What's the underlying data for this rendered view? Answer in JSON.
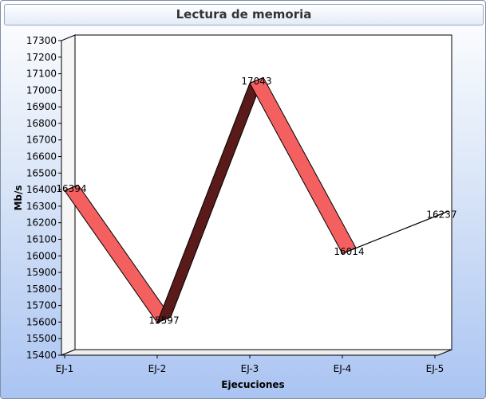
{
  "chart_data": {
    "type": "line",
    "title": "Lectura de memoria",
    "xlabel": "Ejecuciones",
    "ylabel": "Mb/s",
    "categories": [
      "EJ-1",
      "EJ-2",
      "EJ-3",
      "EJ-4",
      "EJ-5"
    ],
    "series": [
      {
        "values": [
          16394,
          15597,
          17043,
          16014,
          16237
        ]
      }
    ],
    "data_labels": [
      "16394",
      "15597",
      "17043",
      "16014",
      "16237"
    ],
    "ylim": [
      15400,
      17300
    ],
    "yticks": [
      15400,
      15500,
      15600,
      15700,
      15800,
      15900,
      16000,
      16100,
      16200,
      16300,
      16400,
      16500,
      16600,
      16700,
      16800,
      16900,
      17000,
      17100,
      17200,
      17300
    ],
    "grid": false,
    "legend": "none",
    "style": "3d-ribbon",
    "colors": {
      "ribbon_front": "#f46060",
      "ribbon_top": "#ff9a9a",
      "ribbon_dark": "#5a1a1a",
      "plot_back": "#ffffff",
      "background_top": "#ffffff",
      "background_bottom": "#aac4f2"
    }
  }
}
